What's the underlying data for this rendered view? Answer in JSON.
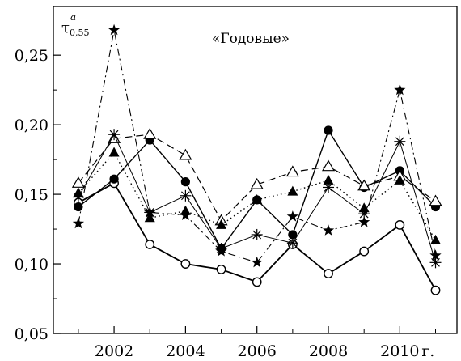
{
  "chart_data": {
    "type": "line",
    "title": "«Годовые»",
    "ylabel": {
      "symbol": "τ",
      "sup": "a",
      "sub": "0,55"
    },
    "xlabel": "",
    "x_unit_suffix": "г.",
    "xlim": [
      2000.3,
      2011.6
    ],
    "ylim": [
      0.05,
      0.285
    ],
    "x_ticks": [
      2002,
      2004,
      2006,
      2008,
      2010
    ],
    "x_tick_labels": [
      "2002",
      "2004",
      "2006",
      "2008",
      "2010"
    ],
    "y_ticks": [
      0.05,
      0.1,
      0.15,
      0.2,
      0.25
    ],
    "y_tick_labels": [
      "0,05",
      "0,10",
      "0,15",
      "0,20",
      "0,25"
    ],
    "x": [
      2001,
      2002,
      2003,
      2004,
      2005,
      2006,
      2007,
      2008,
      2009,
      2010,
      2011
    ],
    "grid": false,
    "series": [
      {
        "marker": "circle-open",
        "line": "solid-thick",
        "values": [
          0.144,
          0.158,
          0.114,
          0.1,
          0.096,
          0.087,
          0.114,
          0.093,
          0.109,
          0.128,
          0.081
        ]
      },
      {
        "marker": "circle-filled",
        "line": "solid",
        "values": [
          0.141,
          0.161,
          0.189,
          0.159,
          0.111,
          0.146,
          0.121,
          0.196,
          0.155,
          0.167,
          0.141
        ]
      },
      {
        "marker": "triangle-open",
        "line": "dashed",
        "values": [
          0.158,
          0.19,
          0.193,
          0.178,
          0.131,
          0.157,
          0.166,
          0.17,
          0.156,
          0.163,
          0.145
        ]
      },
      {
        "marker": "triangle-filled",
        "line": "dotted",
        "values": [
          0.151,
          0.18,
          0.133,
          0.138,
          0.128,
          0.146,
          0.152,
          0.16,
          0.14,
          0.16,
          0.117
        ]
      },
      {
        "marker": "asterisk",
        "line": "solid-thin",
        "values": [
          0.148,
          0.193,
          0.137,
          0.149,
          0.111,
          0.121,
          0.115,
          0.155,
          0.136,
          0.188,
          0.101
        ]
      },
      {
        "marker": "star-filled",
        "line": "dash-dot",
        "values": [
          0.129,
          0.268,
          0.137,
          0.135,
          0.109,
          0.101,
          0.134,
          0.124,
          0.13,
          0.225,
          0.106
        ]
      }
    ]
  }
}
